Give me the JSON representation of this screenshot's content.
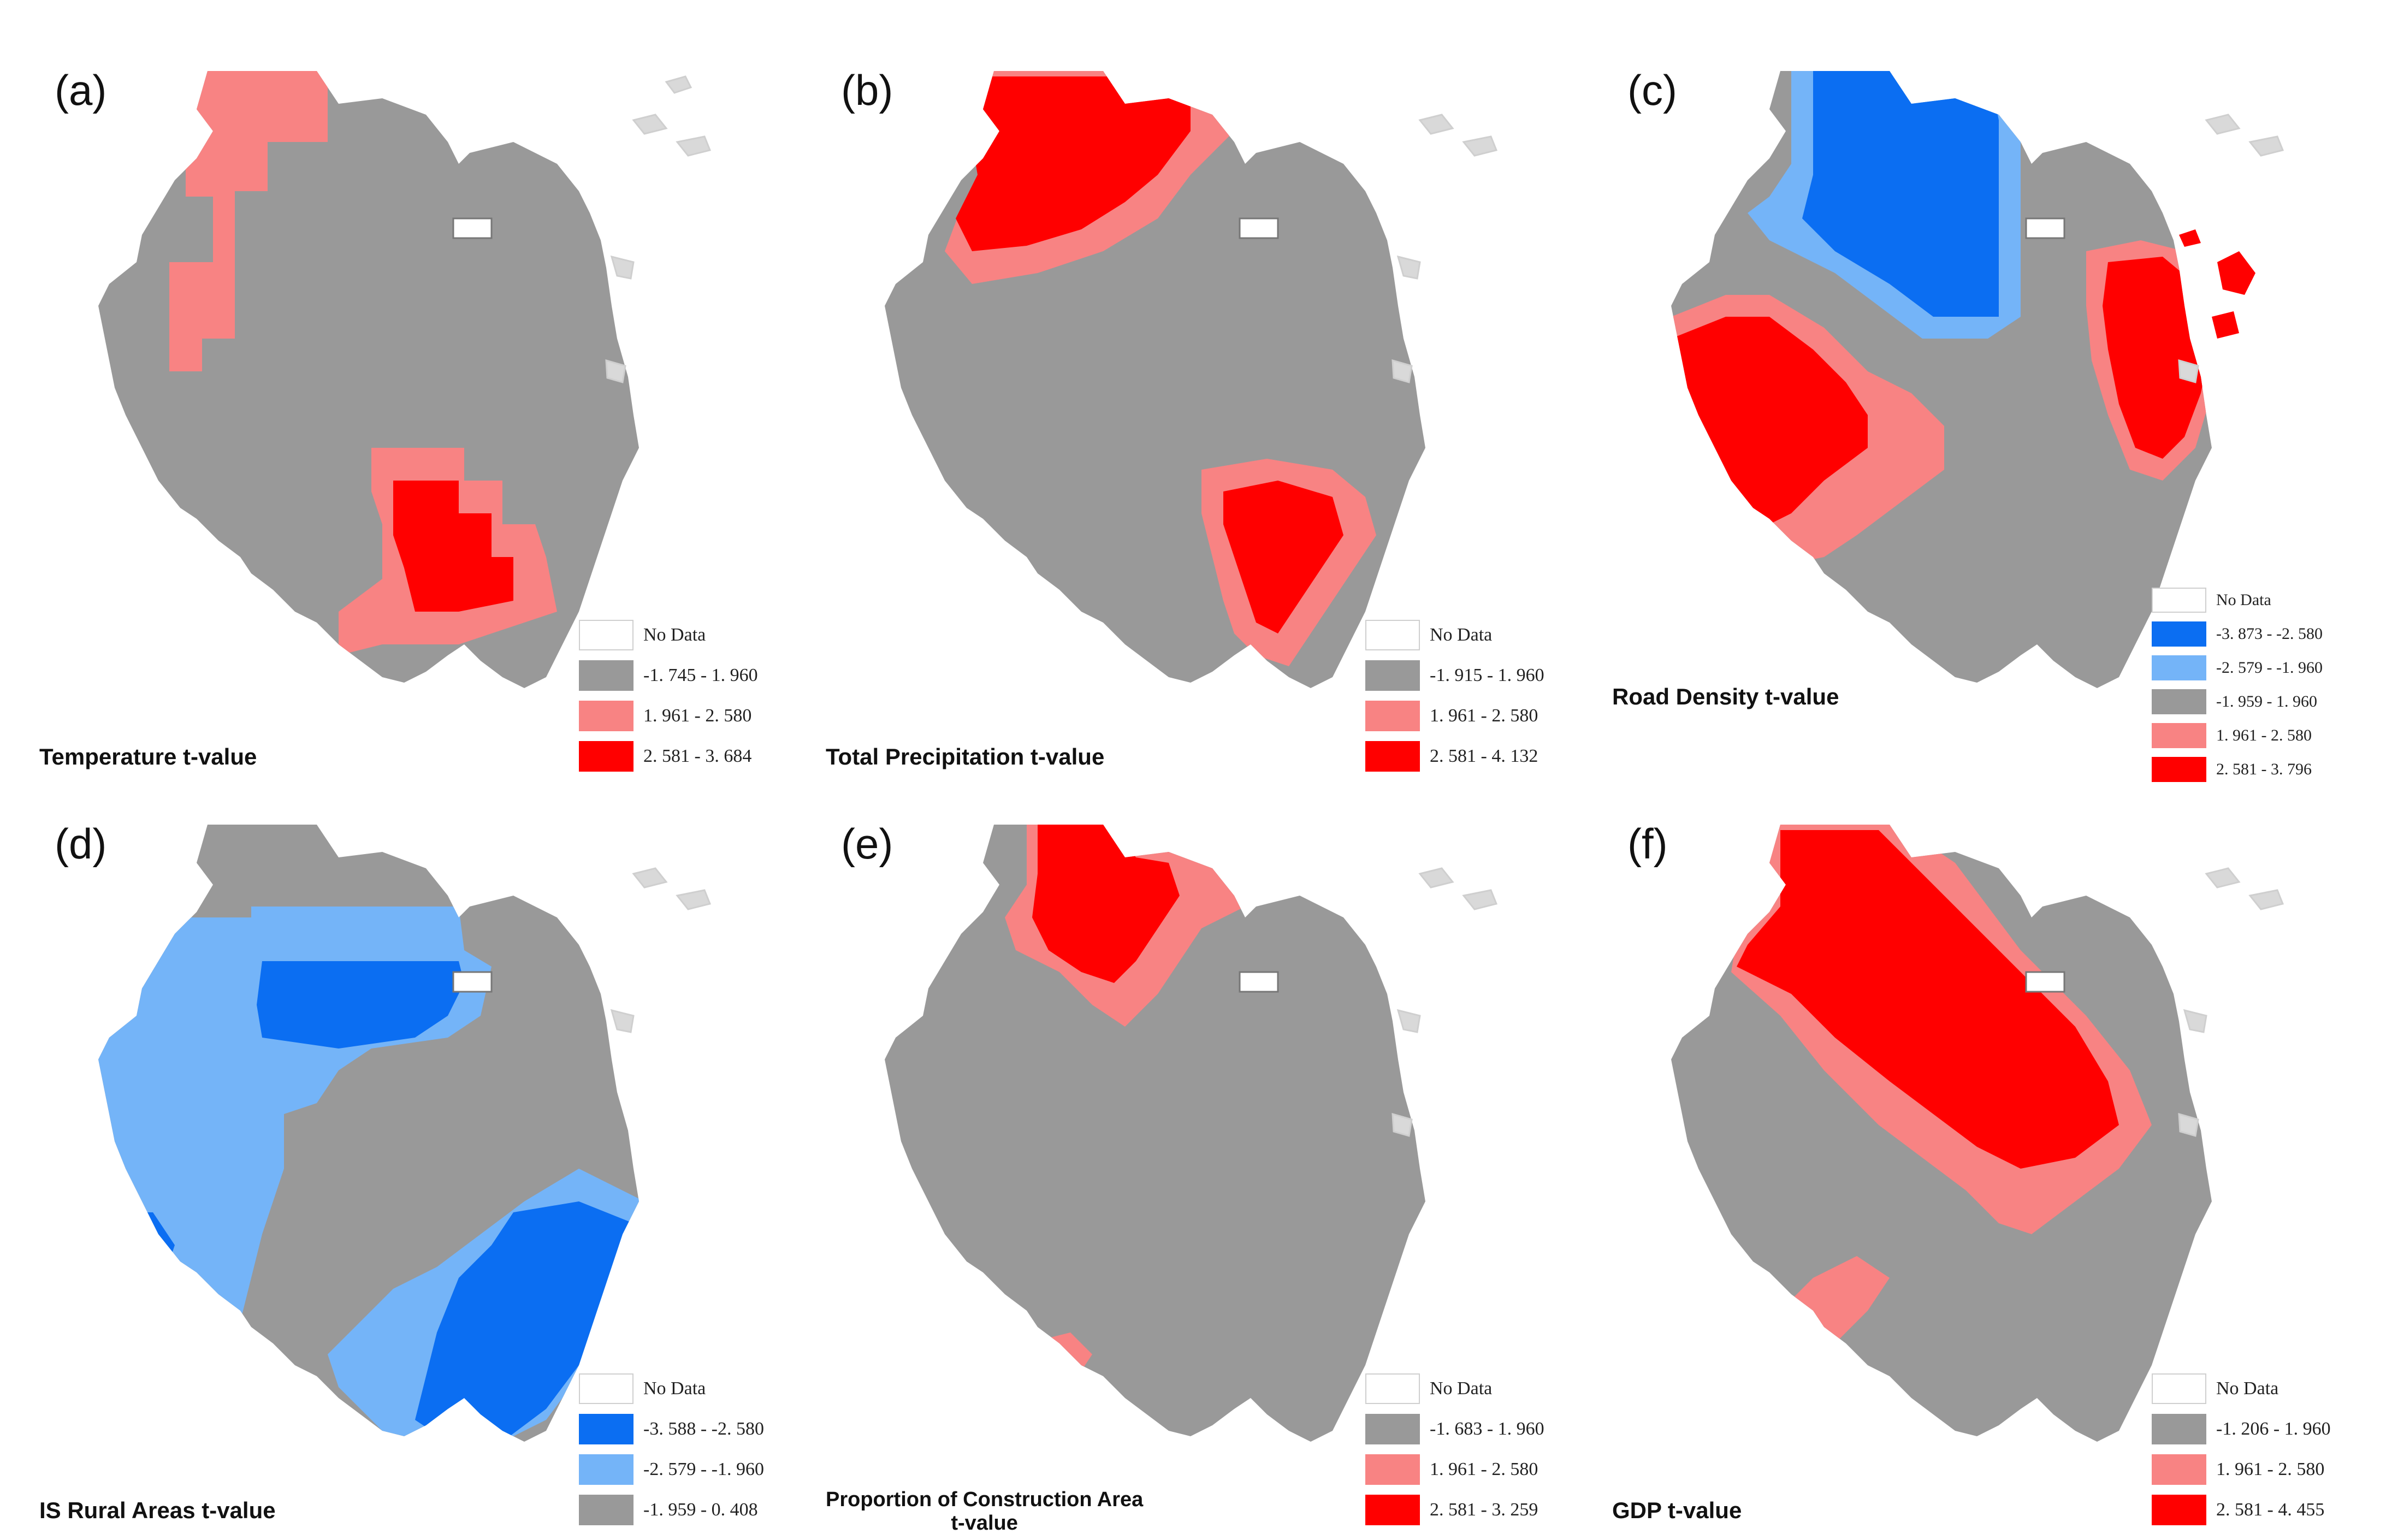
{
  "colors": {
    "gray": "#999999",
    "pink": "#f88383",
    "red": "#ff0000",
    "lightblue": "#74b4f8",
    "blue": "#0b6ef2",
    "nodata": "#ffffff",
    "island": "#d9d9d9"
  },
  "panels": [
    {
      "tag": "(a)",
      "caption": "Temperature t-value",
      "legend": [
        {
          "label": "No Data",
          "color": "nodata"
        },
        {
          "label": "-1. 745 - 1. 960",
          "color": "gray"
        },
        {
          "label": "1. 961 - 2. 580",
          "color": "pink"
        },
        {
          "label": "2. 581 - 3. 684",
          "color": "red"
        }
      ]
    },
    {
      "tag": "(b)",
      "caption": "Total Precipitation t-value",
      "legend": [
        {
          "label": "No Data",
          "color": "nodata"
        },
        {
          "label": "-1. 915 - 1. 960",
          "color": "gray"
        },
        {
          "label": "1. 961 - 2. 580",
          "color": "pink"
        },
        {
          "label": "2. 581 - 4. 132",
          "color": "red"
        }
      ]
    },
    {
      "tag": "(c)",
      "caption": "Road Density t-value",
      "legend": [
        {
          "label": "No Data",
          "color": "nodata"
        },
        {
          "label": "-3. 873 - -2. 580",
          "color": "blue"
        },
        {
          "label": "-2. 579 - -1. 960",
          "color": "lightblue"
        },
        {
          "label": "-1. 959 - 1. 960",
          "color": "gray"
        },
        {
          "label": "1. 961 - 2. 580",
          "color": "pink"
        },
        {
          "label": "2. 581 - 3. 796",
          "color": "red"
        }
      ]
    },
    {
      "tag": "(d)",
      "caption": "IS Rural Areas t-value",
      "legend": [
        {
          "label": "No Data",
          "color": "nodata"
        },
        {
          "label": "-3. 588 - -2. 580",
          "color": "blue"
        },
        {
          "label": "-2. 579 - -1. 960",
          "color": "lightblue"
        },
        {
          "label": "-1. 959 - 0. 408",
          "color": "gray"
        }
      ]
    },
    {
      "tag": "(e)",
      "caption": "Proportion of Construction Area\nt-value",
      "legend": [
        {
          "label": "No Data",
          "color": "nodata"
        },
        {
          "label": "-1. 683 - 1. 960",
          "color": "gray"
        },
        {
          "label": "1. 961 - 2. 580",
          "color": "pink"
        },
        {
          "label": "2. 581 - 3. 259",
          "color": "red"
        }
      ]
    },
    {
      "tag": "(f)",
      "caption": "GDP t-value",
      "legend": [
        {
          "label": "No Data",
          "color": "nodata"
        },
        {
          "label": "-1. 206 - 1. 960",
          "color": "gray"
        },
        {
          "label": "1. 961 - 2. 580",
          "color": "pink"
        },
        {
          "label": "2. 581 - 4. 455",
          "color": "red"
        }
      ]
    }
  ]
}
